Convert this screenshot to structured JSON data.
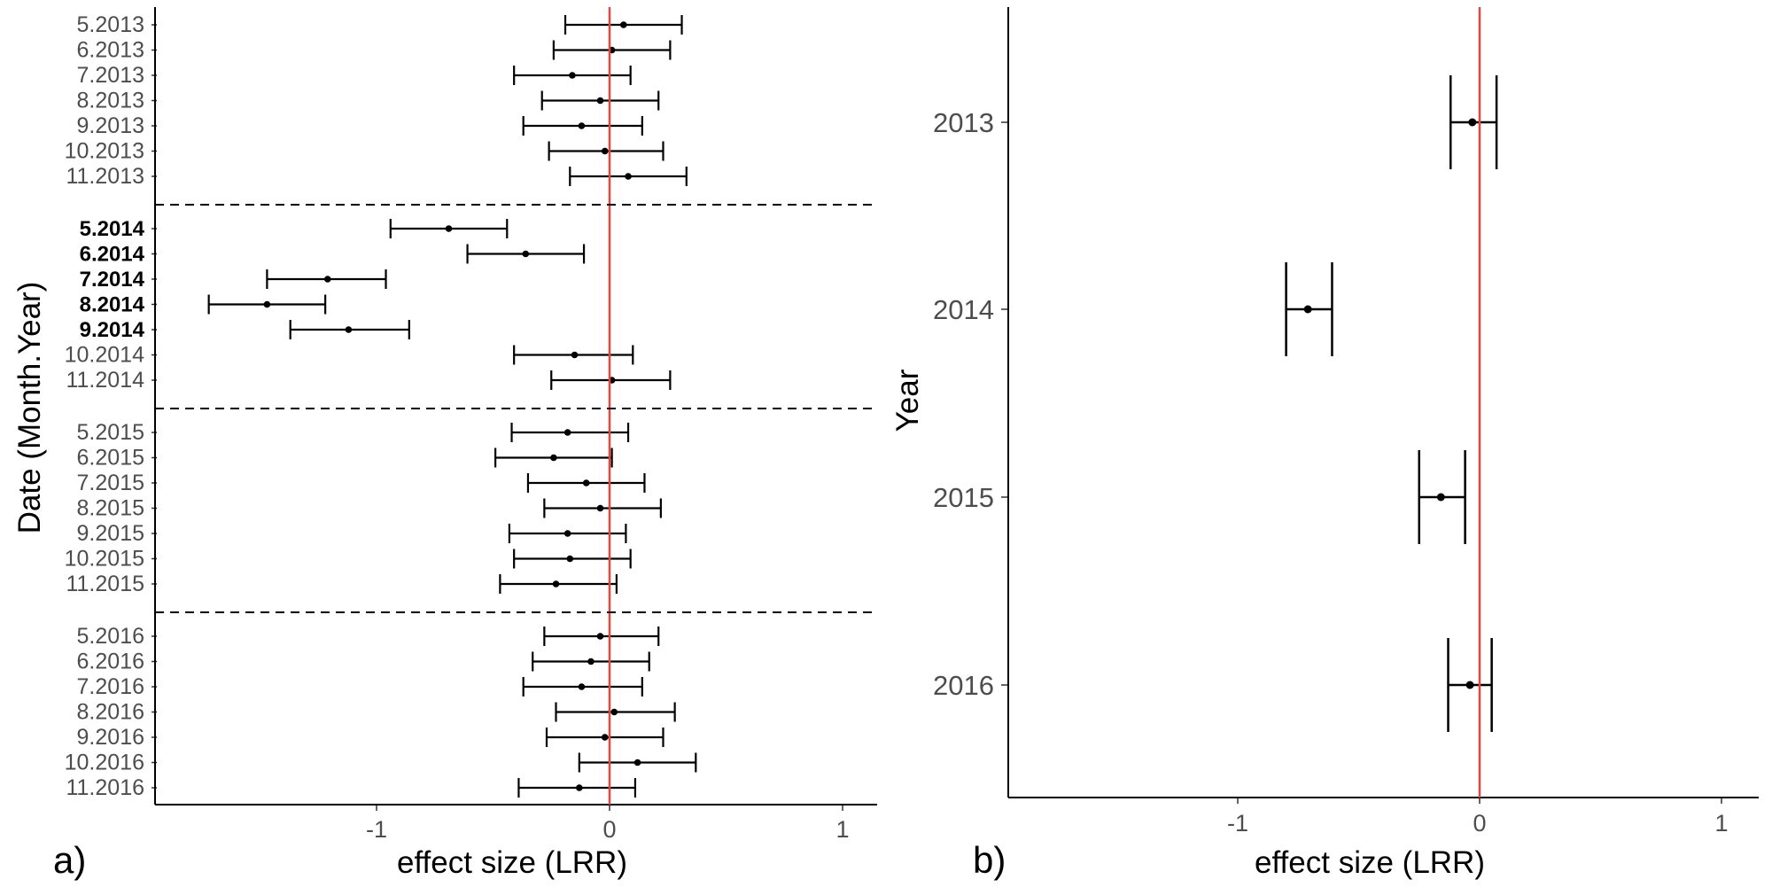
{
  "chart_data": [
    {
      "panel_label": "a)",
      "type": "scatter",
      "subtype": "forest-plot",
      "xlabel": "effect size (LRR)",
      "ylabel": "Date (Month.Year)",
      "xticks": [
        "-1",
        "0",
        "1"
      ],
      "xlim": [
        -1.95,
        1.15
      ],
      "reference_line": {
        "x": 0,
        "color": "#e8463c"
      },
      "group_separators": "dashed",
      "groups": [
        {
          "year": "2013",
          "rows": [
            {
              "label": "5.2013",
              "est": 0.06,
              "lo": -0.19,
              "hi": 0.31,
              "bold": false
            },
            {
              "label": "6.2013",
              "est": 0.01,
              "lo": -0.24,
              "hi": 0.26,
              "bold": false
            },
            {
              "label": "7.2013",
              "est": -0.16,
              "lo": -0.41,
              "hi": 0.09,
              "bold": false
            },
            {
              "label": "8.2013",
              "est": -0.04,
              "lo": -0.29,
              "hi": 0.21,
              "bold": false
            },
            {
              "label": "9.2013",
              "est": -0.12,
              "lo": -0.37,
              "hi": 0.14,
              "bold": false
            },
            {
              "label": "10.2013",
              "est": -0.02,
              "lo": -0.26,
              "hi": 0.23,
              "bold": false
            },
            {
              "label": "11.2013",
              "est": 0.08,
              "lo": -0.17,
              "hi": 0.33,
              "bold": false
            }
          ]
        },
        {
          "year": "2014",
          "rows": [
            {
              "label": "5.2014",
              "est": -0.69,
              "lo": -0.94,
              "hi": -0.44,
              "bold": true
            },
            {
              "label": "6.2014",
              "est": -0.36,
              "lo": -0.61,
              "hi": -0.11,
              "bold": true
            },
            {
              "label": "7.2014",
              "est": -1.21,
              "lo": -1.47,
              "hi": -0.96,
              "bold": true
            },
            {
              "label": "8.2014",
              "est": -1.47,
              "lo": -1.72,
              "hi": -1.22,
              "bold": true
            },
            {
              "label": "9.2014",
              "est": -1.12,
              "lo": -1.37,
              "hi": -0.86,
              "bold": true
            },
            {
              "label": "10.2014",
              "est": -0.15,
              "lo": -0.41,
              "hi": 0.1,
              "bold": false
            },
            {
              "label": "11.2014",
              "est": 0.01,
              "lo": -0.25,
              "hi": 0.26,
              "bold": false
            }
          ]
        },
        {
          "year": "2015",
          "rows": [
            {
              "label": "5.2015",
              "est": -0.18,
              "lo": -0.42,
              "hi": 0.08,
              "bold": false
            },
            {
              "label": "6.2015",
              "est": -0.24,
              "lo": -0.49,
              "hi": 0.01,
              "bold": false
            },
            {
              "label": "7.2015",
              "est": -0.1,
              "lo": -0.35,
              "hi": 0.15,
              "bold": false
            },
            {
              "label": "8.2015",
              "est": -0.04,
              "lo": -0.28,
              "hi": 0.22,
              "bold": false
            },
            {
              "label": "9.2015",
              "est": -0.18,
              "lo": -0.43,
              "hi": 0.07,
              "bold": false
            },
            {
              "label": "10.2015",
              "est": -0.17,
              "lo": -0.41,
              "hi": 0.09,
              "bold": false
            },
            {
              "label": "11.2015",
              "est": -0.23,
              "lo": -0.47,
              "hi": 0.03,
              "bold": false
            }
          ]
        },
        {
          "year": "2016",
          "rows": [
            {
              "label": "5.2016",
              "est": -0.04,
              "lo": -0.28,
              "hi": 0.21,
              "bold": false
            },
            {
              "label": "6.2016",
              "est": -0.08,
              "lo": -0.33,
              "hi": 0.17,
              "bold": false
            },
            {
              "label": "7.2016",
              "est": -0.12,
              "lo": -0.37,
              "hi": 0.14,
              "bold": false
            },
            {
              "label": "8.2016",
              "est": 0.02,
              "lo": -0.23,
              "hi": 0.28,
              "bold": false
            },
            {
              "label": "9.2016",
              "est": -0.02,
              "lo": -0.27,
              "hi": 0.23,
              "bold": false
            },
            {
              "label": "10.2016",
              "est": 0.12,
              "lo": -0.13,
              "hi": 0.37,
              "bold": false
            },
            {
              "label": "11.2016",
              "est": -0.13,
              "lo": -0.39,
              "hi": 0.11,
              "bold": false
            }
          ]
        }
      ]
    },
    {
      "panel_label": "b)",
      "type": "scatter",
      "subtype": "forest-plot",
      "xlabel": "effect size (LRR)",
      "ylabel": "Year",
      "xticks": [
        "-1",
        "0",
        "1"
      ],
      "xlim": [
        -1.95,
        1.15
      ],
      "reference_line": {
        "x": 0,
        "color": "#e8463c"
      },
      "rows": [
        {
          "label": "2013",
          "est": -0.03,
          "lo": -0.12,
          "hi": 0.07
        },
        {
          "label": "2014",
          "est": -0.71,
          "lo": -0.8,
          "hi": -0.61
        },
        {
          "label": "2015",
          "est": -0.16,
          "lo": -0.25,
          "hi": -0.06
        },
        {
          "label": "2016",
          "est": -0.04,
          "lo": -0.13,
          "hi": 0.05
        }
      ]
    }
  ]
}
